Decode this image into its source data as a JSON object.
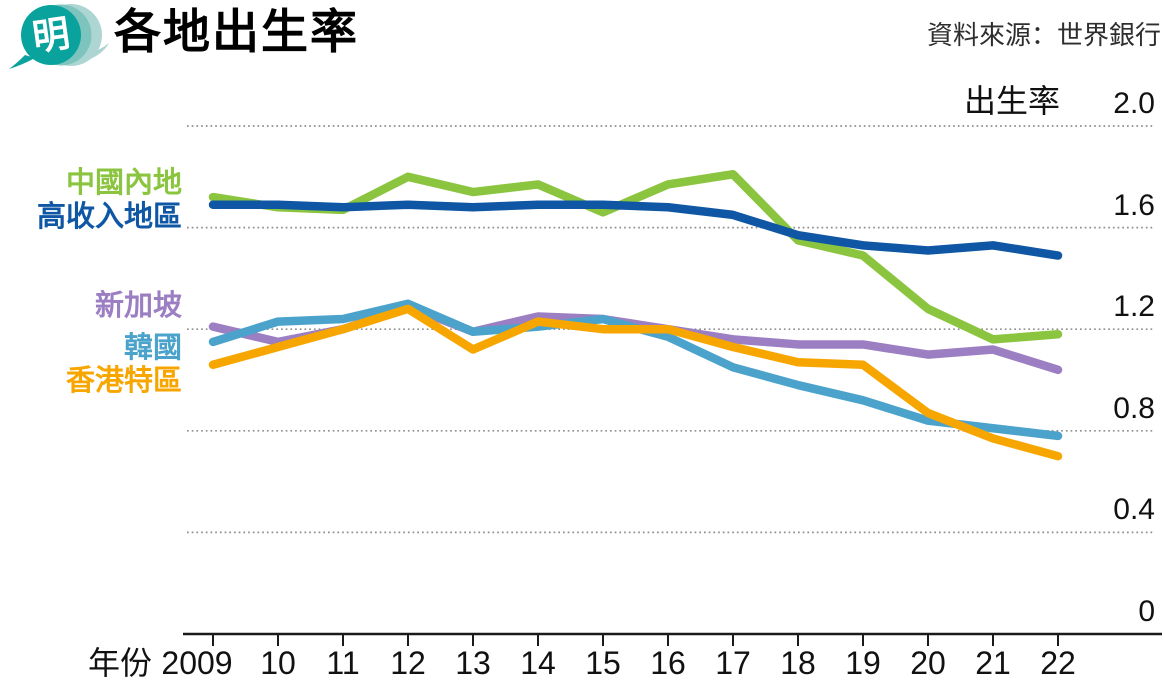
{
  "header": {
    "logo_char": "明",
    "title": "各地出生率",
    "source": "資料來源：世界銀行"
  },
  "colors": {
    "logo_teal": "#0AA29C",
    "logo_light_teal": "#ADD6D3",
    "logo_mid_teal": "#7DC4BF",
    "grid": "#8F8F8F",
    "axis": "#1A1A1A",
    "text": "#111111"
  },
  "chart_data": {
    "type": "line",
    "title": "各地出生率",
    "source": "資料來源：世界銀行",
    "xlabel": "年份",
    "ylabel": "出生率",
    "ylim": [
      0,
      2.0
    ],
    "yticks": [
      2.0,
      1.6,
      1.2,
      0.8,
      0.4,
      0
    ],
    "ytick_labels": [
      "2.0",
      "1.6",
      "1.2",
      "0.8",
      "0.4",
      "0"
    ],
    "years": [
      2009,
      2010,
      2011,
      2012,
      2013,
      2014,
      2015,
      2016,
      2017,
      2018,
      2019,
      2020,
      2021,
      2022
    ],
    "x_tick_labels": [
      "2009",
      "10",
      "11",
      "12",
      "13",
      "14",
      "15",
      "16",
      "17",
      "18",
      "19",
      "20",
      "21",
      "22"
    ],
    "grid": "horizontal-dotted",
    "legend_position": "left",
    "series": [
      {
        "name": "中國內地",
        "color": "#8BC53F",
        "values": [
          1.72,
          1.68,
          1.67,
          1.8,
          1.74,
          1.77,
          1.66,
          1.77,
          1.81,
          1.55,
          1.49,
          1.28,
          1.16,
          1.18
        ]
      },
      {
        "name": "高收入地區",
        "color": "#0F57A4",
        "values": [
          1.69,
          1.69,
          1.68,
          1.69,
          1.68,
          1.69,
          1.69,
          1.68,
          1.65,
          1.57,
          1.53,
          1.51,
          1.53,
          1.49
        ]
      },
      {
        "name": "新加坡",
        "color": "#9C7EC2",
        "values": [
          1.21,
          1.15,
          1.2,
          1.29,
          1.19,
          1.25,
          1.24,
          1.2,
          1.16,
          1.14,
          1.14,
          1.1,
          1.12,
          1.04
        ]
      },
      {
        "name": "韓國",
        "color": "#4BA3CC",
        "values": [
          1.15,
          1.23,
          1.24,
          1.3,
          1.19,
          1.21,
          1.24,
          1.17,
          1.05,
          0.98,
          0.92,
          0.84,
          0.81,
          0.78
        ]
      },
      {
        "name": "香港特區",
        "color": "#F7A600",
        "values": [
          1.06,
          1.13,
          1.2,
          1.28,
          1.12,
          1.23,
          1.2,
          1.2,
          1.13,
          1.07,
          1.06,
          0.87,
          0.77,
          0.7
        ]
      }
    ]
  }
}
